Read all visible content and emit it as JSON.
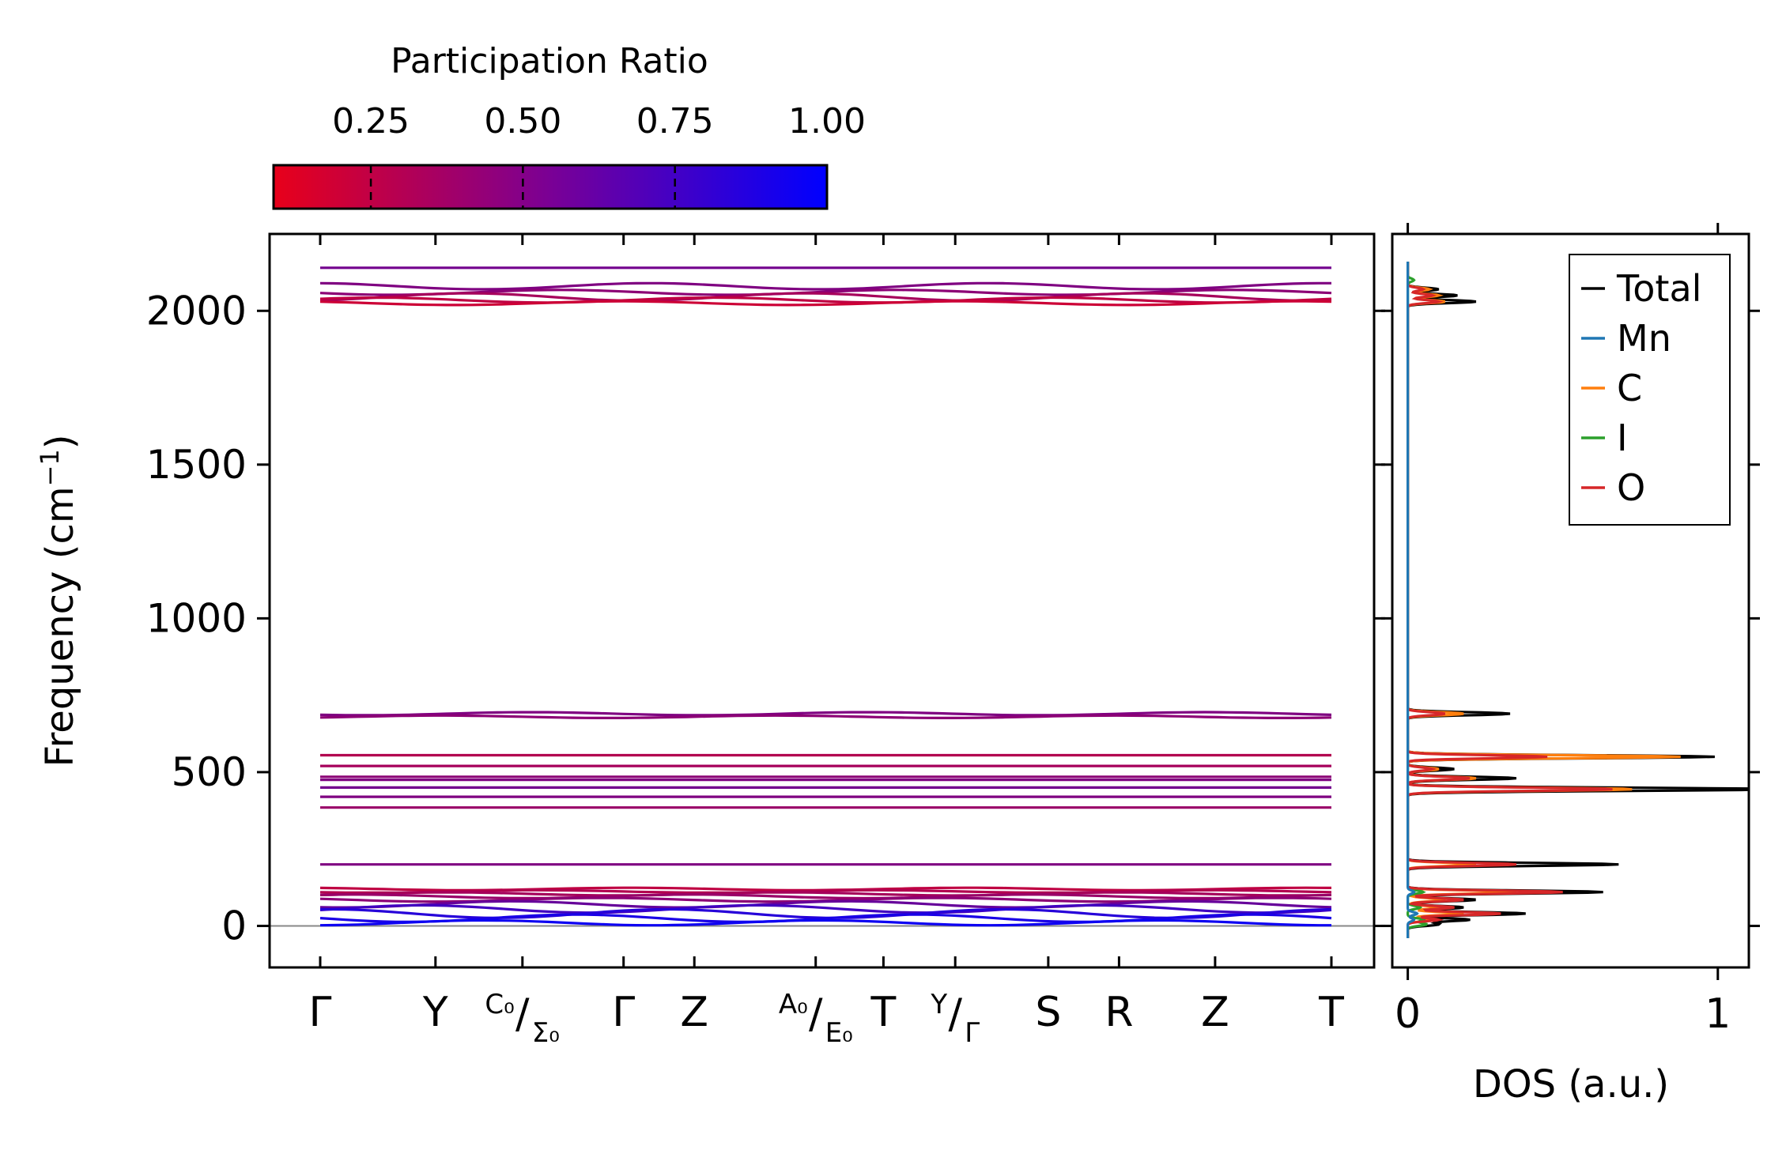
{
  "chart_data": [
    {
      "type": "band_structure",
      "ylabel_main": "Frequency (cm",
      "ylabel_sup": "−1",
      "ylabel_end": ")",
      "ylim": [
        -135,
        2250
      ],
      "yticks": [
        0,
        500,
        1000,
        1500,
        2000
      ],
      "ytick_labels": [
        "0",
        "500",
        "1000",
        "1500",
        "2000"
      ],
      "kpath_labels": [
        {
          "pos": 0.0,
          "main": "Γ"
        },
        {
          "pos": 0.114,
          "main": "Y"
        },
        {
          "pos": 0.2,
          "top": "C₀",
          "bottom": "Σ₀"
        },
        {
          "pos": 0.3,
          "main": "Γ"
        },
        {
          "pos": 0.37,
          "main": "Z"
        },
        {
          "pos": 0.49,
          "top": "A₀",
          "bottom": "E₀"
        },
        {
          "pos": 0.557,
          "main": "T"
        },
        {
          "pos": 0.628,
          "top": "Y",
          "bottom": "Γ"
        },
        {
          "pos": 0.72,
          "main": "S"
        },
        {
          "pos": 0.79,
          "main": "R"
        },
        {
          "pos": 0.885,
          "main": "Z"
        },
        {
          "pos": 1.0,
          "main": "T"
        }
      ],
      "bands_flat": [
        {
          "freq": 2140,
          "pr": 0.55
        },
        {
          "freq": 2080,
          "pr": 0.5,
          "wiggle": 10
        },
        {
          "freq": 2060,
          "pr": 0.45,
          "wiggle": 8
        },
        {
          "freq": 2045,
          "pr": 0.35,
          "wiggle": 12
        },
        {
          "freq": 2035,
          "pr": 0.25,
          "wiggle": 8
        },
        {
          "freq": 2025,
          "pr": 0.2,
          "wiggle": 6
        },
        {
          "freq": 690,
          "pr": 0.5,
          "wiggle": 5
        },
        {
          "freq": 680,
          "pr": 0.45,
          "wiggle": 4
        },
        {
          "freq": 555,
          "pr": 0.3
        },
        {
          "freq": 520,
          "pr": 0.35
        },
        {
          "freq": 485,
          "pr": 0.45
        },
        {
          "freq": 475,
          "pr": 0.5
        },
        {
          "freq": 450,
          "pr": 0.55
        },
        {
          "freq": 420,
          "pr": 0.5
        },
        {
          "freq": 385,
          "pr": 0.4
        },
        {
          "freq": 200,
          "pr": 0.5
        },
        {
          "freq": 120,
          "pr": 0.25,
          "wiggle": 4
        },
        {
          "freq": 112,
          "pr": 0.3,
          "wiggle": 4
        },
        {
          "freq": 104,
          "pr": 0.35,
          "wiggle": 5
        },
        {
          "freq": 96,
          "pr": 0.4,
          "wiggle": 6
        },
        {
          "freq": 85,
          "pr": 0.45,
          "wiggle": 6
        },
        {
          "freq": 70,
          "pr": 0.6,
          "wiggle": 10
        },
        {
          "freq": 55,
          "pr": 0.75,
          "wiggle": 12
        },
        {
          "freq": 40,
          "pr": 0.85,
          "wiggle": 14
        },
        {
          "freq": 25,
          "pr": 0.9,
          "wiggle": 12
        },
        {
          "freq": 10,
          "pr": 0.95,
          "wiggle": 8
        }
      ],
      "colorbar": {
        "title": "Participation Ratio",
        "ticks": [
          0.25,
          0.5,
          0.75,
          1.0
        ],
        "tick_labels": [
          "0.25",
          "0.50",
          "0.75",
          "1.00"
        ],
        "range": [
          0.09,
          1.0
        ],
        "color_low": "#e8001a",
        "color_high": "#0000ff"
      }
    },
    {
      "type": "line",
      "xlabel": "DOS (a.u.)",
      "xlim": [
        -0.05,
        1.1
      ],
      "xticks": [
        0,
        1
      ],
      "xtick_labels": [
        "0",
        "1"
      ],
      "legend": {
        "position": "top-right",
        "entries": [
          {
            "label": "Total",
            "color": "#000000"
          },
          {
            "label": "Mn",
            "color": "#1f77b4"
          },
          {
            "label": "C",
            "color": "#ff7f0e"
          },
          {
            "label": "I",
            "color": "#2ca02c"
          },
          {
            "label": "O",
            "color": "#d62728"
          }
        ]
      },
      "series": [
        {
          "name": "Total",
          "color": "#000000",
          "peaks": [
            [
              5,
              0.1
            ],
            [
              20,
              0.2
            ],
            [
              40,
              0.38
            ],
            [
              60,
              0.18
            ],
            [
              85,
              0.22
            ],
            [
              110,
              0.63
            ],
            [
              200,
              0.68
            ],
            [
              440,
              0.22
            ],
            [
              445,
              1.05
            ],
            [
              480,
              0.35
            ],
            [
              510,
              0.15
            ],
            [
              550,
              0.99
            ],
            [
              690,
              0.33
            ],
            [
              2030,
              0.22
            ],
            [
              2050,
              0.16
            ],
            [
              2070,
              0.1
            ]
          ]
        },
        {
          "name": "C",
          "color": "#ff7f0e",
          "peaks": [
            [
              20,
              0.08
            ],
            [
              40,
              0.18
            ],
            [
              60,
              0.1
            ],
            [
              85,
              0.12
            ],
            [
              110,
              0.35
            ],
            [
              200,
              0.22
            ],
            [
              440,
              0.12
            ],
            [
              445,
              0.65
            ],
            [
              480,
              0.22
            ],
            [
              510,
              0.1
            ],
            [
              550,
              0.88
            ],
            [
              690,
              0.18
            ],
            [
              2030,
              0.12
            ],
            [
              2050,
              0.1
            ],
            [
              2070,
              0.07
            ]
          ]
        },
        {
          "name": "I",
          "color": "#2ca02c",
          "peaks": [
            [
              5,
              0.06
            ],
            [
              20,
              0.05
            ],
            [
              60,
              0.04
            ],
            [
              110,
              0.05
            ],
            [
              2100,
              0.02
            ]
          ]
        },
        {
          "name": "O",
          "color": "#d62728",
          "peaks": [
            [
              20,
              0.1
            ],
            [
              40,
              0.3
            ],
            [
              60,
              0.15
            ],
            [
              85,
              0.18
            ],
            [
              110,
              0.5
            ],
            [
              200,
              0.35
            ],
            [
              440,
              0.1
            ],
            [
              445,
              0.6
            ],
            [
              480,
              0.2
            ],
            [
              510,
              0.08
            ],
            [
              550,
              0.45
            ],
            [
              690,
              0.12
            ],
            [
              2030,
              0.1
            ],
            [
              2050,
              0.08
            ],
            [
              2070,
              0.05
            ]
          ]
        },
        {
          "name": "Mn",
          "color": "#1f77b4",
          "peaks": [
            [
              20,
              0.02
            ],
            [
              40,
              0.03
            ],
            [
              110,
              0.02
            ]
          ]
        }
      ]
    }
  ]
}
